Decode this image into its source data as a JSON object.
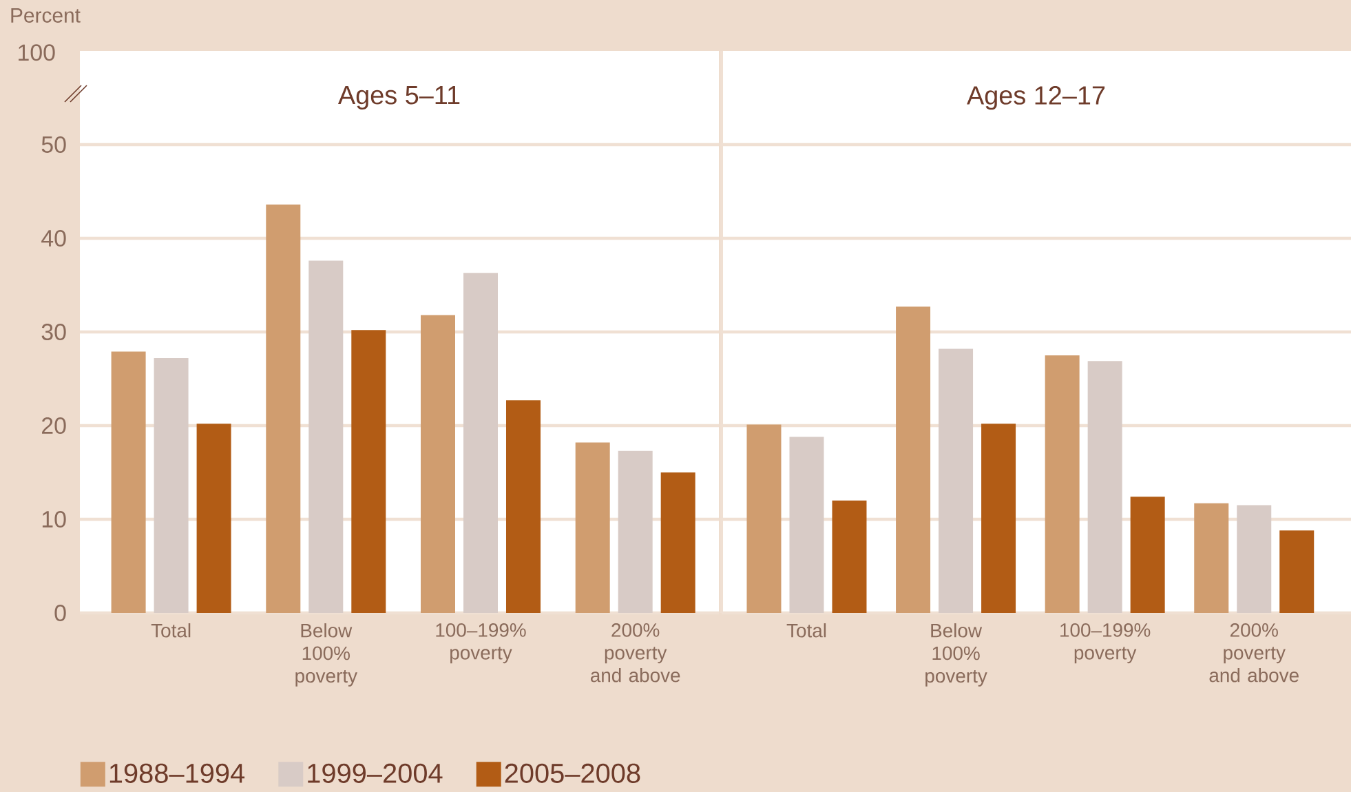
{
  "chart_data": [
    {
      "type": "bar",
      "title": "Ages 5–11",
      "ylabel": "Percent",
      "annotations": [
        "100"
      ],
      "categories": [
        "Total",
        "Below 100% poverty",
        "100–199% poverty",
        "200% poverty and above"
      ],
      "series": [
        {
          "name": "1988–1994",
          "color": "#d09d6f",
          "values": [
            27.9,
            43.6,
            31.8,
            18.2
          ]
        },
        {
          "name": "1999–2004",
          "color": "#d8cbc6",
          "values": [
            27.2,
            37.6,
            36.3,
            17.3
          ]
        },
        {
          "name": "2005–2008",
          "color": "#b25c15",
          "values": [
            20.2,
            30.2,
            22.7,
            15.0
          ]
        }
      ],
      "ylim": [
        0,
        60
      ],
      "yticks": [
        0,
        10,
        20,
        30,
        40,
        50
      ],
      "grid": "y",
      "legend": "bottom"
    },
    {
      "type": "bar",
      "title": "Ages 12–17",
      "categories": [
        "Total",
        "Below 100% poverty",
        "100–199% poverty",
        "200% poverty and above"
      ],
      "series": [
        {
          "color": "#d09d6f",
          "values": [
            20.1,
            32.7,
            27.5,
            11.7
          ]
        },
        {
          "color": "#d8cbc6",
          "values": [
            18.8,
            28.2,
            26.9,
            11.5
          ]
        },
        {
          "color": "#b25c15",
          "values": [
            12.0,
            20.2,
            12.4,
            8.8
          ]
        }
      ],
      "ylim": [
        0,
        60
      ],
      "yticks": [
        0,
        10,
        20,
        30,
        40,
        50
      ],
      "grid": "y",
      "tick_labels": "x"
    }
  ]
}
